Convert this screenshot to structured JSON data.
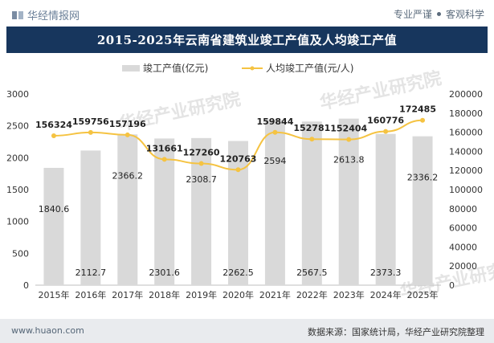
{
  "header": {
    "brand": "华经情报网",
    "tags": [
      "专业严谨",
      "客观科学"
    ]
  },
  "title": "2015-2025年云南省建筑业竣工产值及人均竣工产值",
  "footer": {
    "url": "www.huaon.com",
    "source": "数据来源：国家统计局，华经产业研究院整理"
  },
  "watermark": "华经产业研究院",
  "colors": {
    "title_bg": "#17365d",
    "bar": "#d9d9d9",
    "line": "#f5c342",
    "footer_bg": "#e9ebee"
  },
  "chart_data": {
    "type": "bar+line",
    "categories": [
      "2015年",
      "2016年",
      "2017年",
      "2018年",
      "2019年",
      "2020年",
      "2021年",
      "2022年",
      "2023年",
      "2024年",
      "2025年"
    ],
    "series": [
      {
        "name": "竣工产值(亿元)",
        "type": "bar",
        "axis": "left",
        "values": [
          1840.6,
          2112.7,
          2366.2,
          2301.6,
          2308.7,
          2262.5,
          2594,
          2567.5,
          2613.8,
          2373.3,
          2336.2
        ],
        "labels": [
          "1840.6",
          "2112.7",
          "2366.2",
          "2301.6",
          "2308.7",
          "2262.5",
          "2594",
          "2567.5",
          "2613.8",
          "2373.3",
          "2336.2"
        ]
      },
      {
        "name": "人均竣工产值(元/人)",
        "type": "line",
        "axis": "right",
        "values": [
          156324,
          159756,
          157196,
          131661,
          127260,
          120763,
          159844,
          152781,
          152404,
          160776,
          172485
        ],
        "labels": [
          "156324",
          "159756",
          "157196",
          "131661",
          "127260",
          "120763",
          "159844",
          "152781",
          "152404",
          "160776",
          "172485"
        ]
      }
    ],
    "y_left": {
      "min": 0,
      "max": 3000,
      "ticks": [
        "0",
        "500",
        "1000",
        "1500",
        "2000",
        "2500",
        "3000"
      ]
    },
    "y_right": {
      "min": 0,
      "max": 200000,
      "ticks": [
        "0",
        "20000",
        "40000",
        "60000",
        "80000",
        "100000",
        "120000",
        "140000",
        "160000",
        "180000",
        "200000"
      ]
    },
    "grid": false,
    "legend_position": "top"
  }
}
